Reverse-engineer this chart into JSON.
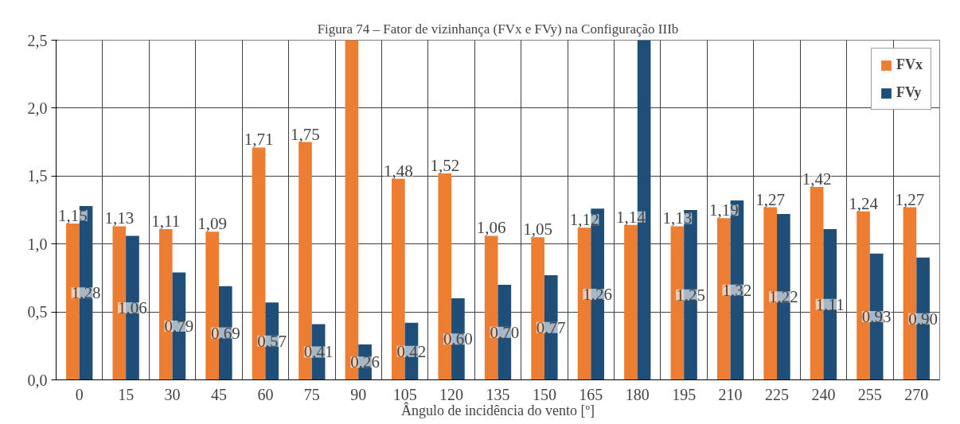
{
  "chart_data": {
    "type": "bar",
    "title": "Figura 74 – Fator de vizinhança (FVx e FVy) na Configuração IIIb",
    "xlabel": "Ângulo de incidência do vento [º]",
    "categories": [
      "0",
      "15",
      "30",
      "45",
      "60",
      "75",
      "90",
      "105",
      "120",
      "135",
      "150",
      "165",
      "180",
      "195",
      "210",
      "225",
      "240",
      "255",
      "270"
    ],
    "series": [
      {
        "name": "FVx",
        "color": "#ed7d31",
        "values": [
          1.15,
          1.13,
          1.11,
          1.09,
          1.71,
          1.75,
          2.5,
          1.48,
          1.52,
          1.06,
          1.05,
          1.12,
          1.14,
          1.13,
          1.19,
          1.27,
          1.42,
          1.24,
          1.27
        ],
        "value_labels": [
          "1,15",
          "1,13",
          "1,11",
          "1,09",
          "1,71",
          "1,75",
          null,
          "1,48",
          "1,52",
          "1,06",
          "1,05",
          "1,12",
          "1,14",
          "1,13",
          "1,19",
          "1,27",
          "1,42",
          "1,24",
          "1,27"
        ]
      },
      {
        "name": "FVy",
        "color": "#1f4e79",
        "values": [
          1.28,
          1.06,
          0.79,
          0.69,
          0.57,
          0.41,
          0.26,
          0.42,
          0.6,
          0.7,
          0.77,
          1.26,
          2.5,
          1.25,
          1.32,
          1.22,
          1.11,
          0.93,
          0.9
        ],
        "value_labels": [
          "1,28",
          "1,06",
          "0,79",
          "0,69",
          "0,57",
          "0,41",
          "0,26",
          "0,42",
          "0,60",
          "0,70",
          "0,77",
          "1,26",
          null,
          "1,25",
          "1,32",
          "1,22",
          "1,11",
          "0,93",
          "0,90"
        ]
      }
    ],
    "ylim": [
      0,
      2.5
    ],
    "yticks": [
      {
        "value": 0,
        "label": "0,0"
      },
      {
        "value": 0.5,
        "label": "0,5"
      },
      {
        "value": 1,
        "label": "1,0"
      },
      {
        "value": 1.5,
        "label": "1,5"
      },
      {
        "value": 2,
        "label": "2,0"
      },
      {
        "value": 2.5,
        "label": "2,5"
      }
    ],
    "grid": true,
    "legend": "top right"
  }
}
